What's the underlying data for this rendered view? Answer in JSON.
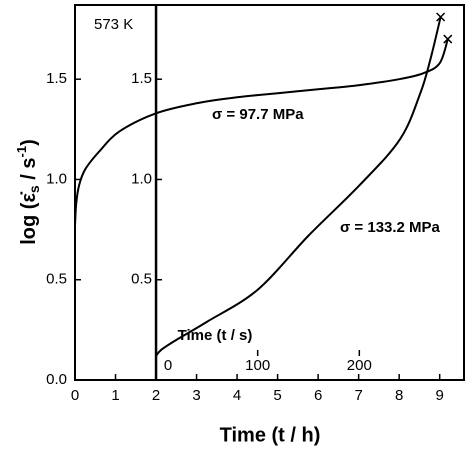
{
  "chart_data": {
    "type": "line",
    "xlabel": "Time (t / h)",
    "ylabel": [
      "log (ε̇",
      "s",
      " / s",
      "-1",
      ")"
    ],
    "x2label": "Time (t / s)",
    "xlim": [
      0,
      9.6
    ],
    "xticks": [
      0,
      1,
      2,
      3,
      4,
      5,
      6,
      7,
      8,
      9
    ],
    "ylim": [
      0,
      1.87
    ],
    "yticks": [
      {
        "value": 0,
        "label": "0.0"
      },
      0.5,
      {
        "value": 1,
        "label": "1.0"
      },
      1.5
    ],
    "x2lim": [
      0,
      303
    ],
    "x2ticks": [
      0,
      100,
      200
    ],
    "inner_axis_at": 2,
    "y2ticks": [
      0.5,
      {
        "value": 1,
        "label": "1.0"
      },
      1.5
    ],
    "annotations": [
      "573 K"
    ],
    "series": [
      {
        "name": "σ = 97.7 MPa",
        "color": "#000000",
        "x": [
          0,
          0.03,
          0.1,
          0.25,
          0.6,
          1.1,
          2,
          3,
          4,
          5,
          6,
          7,
          8,
          8.6,
          9,
          9.2
        ],
        "values": [
          0.77,
          0.88,
          0.97,
          1.05,
          1.14,
          1.24,
          1.33,
          1.38,
          1.41,
          1.43,
          1.45,
          1.47,
          1.5,
          1.53,
          1.58,
          1.7
        ]
      },
      {
        "name": "σ = 133.2 MPa",
        "color": "#000000",
        "axis": "x2",
        "x": [
          0,
          5,
          20,
          50,
          100,
          150,
          200,
          240,
          260,
          270,
          280
        ],
        "values": [
          0.12,
          0.15,
          0.2,
          0.29,
          0.45,
          0.72,
          0.97,
          1.2,
          1.43,
          1.6,
          1.81
        ]
      }
    ]
  }
}
